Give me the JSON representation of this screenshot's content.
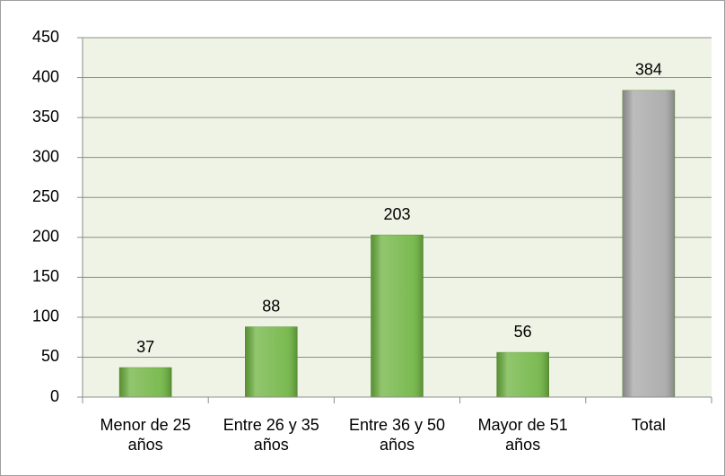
{
  "chart_data": {
    "type": "bar",
    "categories": [
      "Menor de 25 años",
      "Entre 26 y 35 años",
      "Entre 36 y 50 años",
      "Mayor de 51 años",
      "Total"
    ],
    "values": [
      37,
      88,
      203,
      56,
      384
    ],
    "colors": [
      "#6db33f",
      "#6db33f",
      "#6db33f",
      "#6db33f",
      "#a6a6a6"
    ],
    "ylim": [
      0,
      450
    ],
    "yticks": [
      0,
      50,
      100,
      150,
      200,
      250,
      300,
      350,
      400,
      450
    ],
    "grid": true
  }
}
